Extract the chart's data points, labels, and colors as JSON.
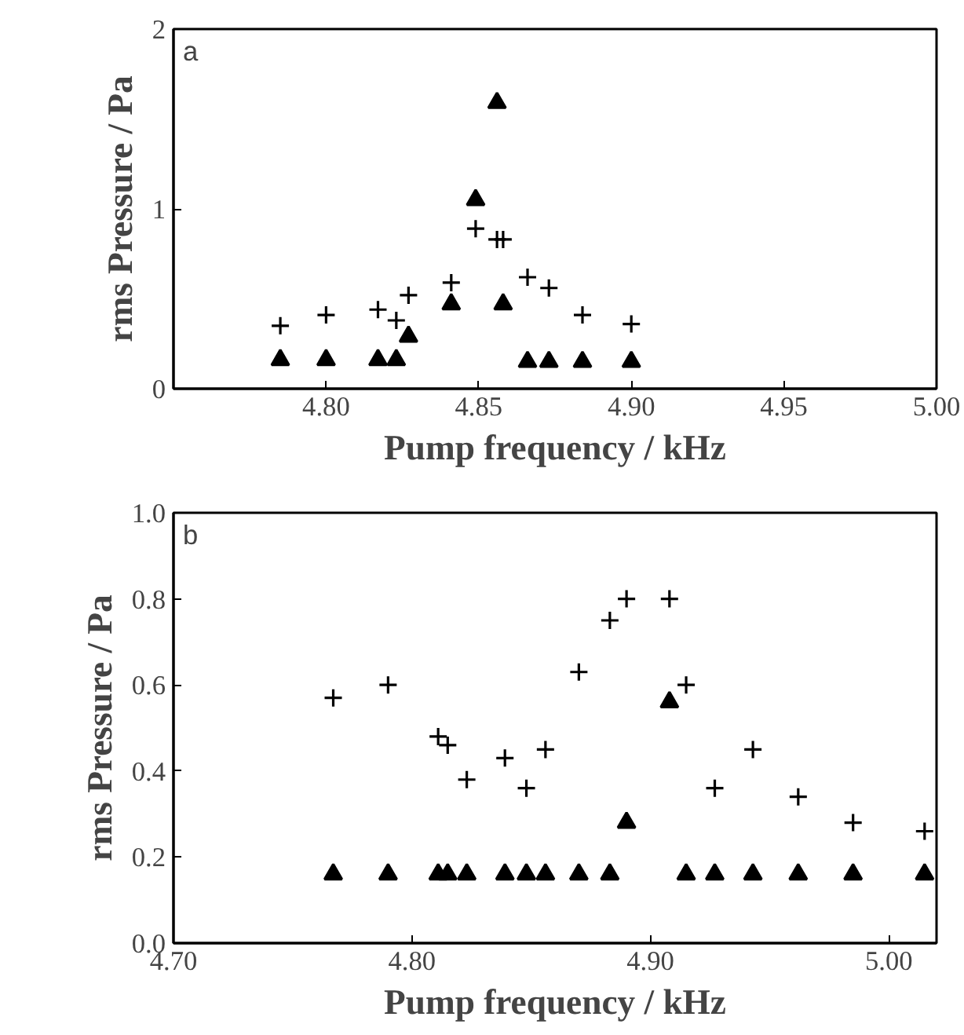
{
  "chart_data": [
    {
      "type": "scatter",
      "xlabel": "Pump frequency / kHz",
      "ylabel": "rms Pressure / Pa",
      "annotations": [
        "a"
      ],
      "xlim": [
        4.75,
        5.0
      ],
      "ylim": [
        0,
        2
      ],
      "xticks": [
        {
          "value": 4.8,
          "label": "4.80"
        },
        {
          "value": 4.85,
          "label": "4.85"
        },
        {
          "value": 4.9,
          "label": "4.90"
        },
        {
          "value": 4.95,
          "label": "4.95"
        },
        {
          "value": 5.0,
          "label": "5.00"
        }
      ],
      "yticks": [
        0,
        1,
        2
      ],
      "grid": false,
      "series": [
        {
          "color": "#000000",
          "marker": "cross",
          "x": [
            4.785,
            4.8,
            4.817,
            4.823,
            4.827,
            4.841,
            4.849,
            4.856,
            4.858,
            4.866,
            4.873,
            4.884,
            4.9
          ],
          "values": [
            0.35,
            0.41,
            0.44,
            0.38,
            0.52,
            0.59,
            0.89,
            0.83,
            0.83,
            0.62,
            0.56,
            0.41,
            0.36
          ]
        },
        {
          "color": "#000000",
          "marker": "triangle",
          "x": [
            4.785,
            4.8,
            4.817,
            4.823,
            4.827,
            4.841,
            4.849,
            4.856,
            4.858,
            4.866,
            4.873,
            4.884,
            4.9
          ],
          "values": [
            0.16,
            0.16,
            0.16,
            0.16,
            0.29,
            0.47,
            1.05,
            1.59,
            0.47,
            0.15,
            0.15,
            0.15,
            0.15
          ]
        }
      ]
    },
    {
      "type": "scatter",
      "xlabel": "Pump frequency / kHz",
      "ylabel": "rms Pressure / Pa",
      "annotations": [
        "b"
      ],
      "xlim": [
        4.7,
        5.02
      ],
      "ylim": [
        0,
        1.0
      ],
      "xticks": [
        {
          "value": 4.7,
          "label": "4.70"
        },
        {
          "value": 4.8,
          "label": "4.80"
        },
        {
          "value": 4.9,
          "label": "4.90"
        },
        {
          "value": 5.0,
          "label": "5.00"
        }
      ],
      "yticks": [
        {
          "value": 0,
          "label": "0.0"
        },
        0.2,
        0.4,
        0.6,
        0.8,
        {
          "value": 1.0,
          "label": "1.0"
        }
      ],
      "grid": false,
      "series": [
        {
          "color": "#000000",
          "marker": "cross",
          "x": [
            4.767,
            4.79,
            4.811,
            4.815,
            4.823,
            4.839,
            4.848,
            4.856,
            4.87,
            4.883,
            4.89,
            4.908,
            4.915,
            4.927,
            4.943,
            4.962,
            4.985,
            5.015
          ],
          "values": [
            0.57,
            0.6,
            0.48,
            0.46,
            0.38,
            0.43,
            0.36,
            0.45,
            0.63,
            0.75,
            0.8,
            0.8,
            0.6,
            0.36,
            0.45,
            0.34,
            0.28,
            0.26
          ]
        },
        {
          "color": "#000000",
          "marker": "triangle",
          "x": [
            4.767,
            4.79,
            4.811,
            4.815,
            4.823,
            4.839,
            4.848,
            4.856,
            4.87,
            4.883,
            4.89,
            4.908,
            4.915,
            4.927,
            4.943,
            4.962,
            4.985,
            5.015
          ],
          "values": [
            0.16,
            0.16,
            0.16,
            0.16,
            0.16,
            0.16,
            0.16,
            0.16,
            0.16,
            0.16,
            0.28,
            0.56,
            0.16,
            0.16,
            0.16,
            0.16,
            0.16,
            0.16
          ]
        }
      ]
    }
  ]
}
